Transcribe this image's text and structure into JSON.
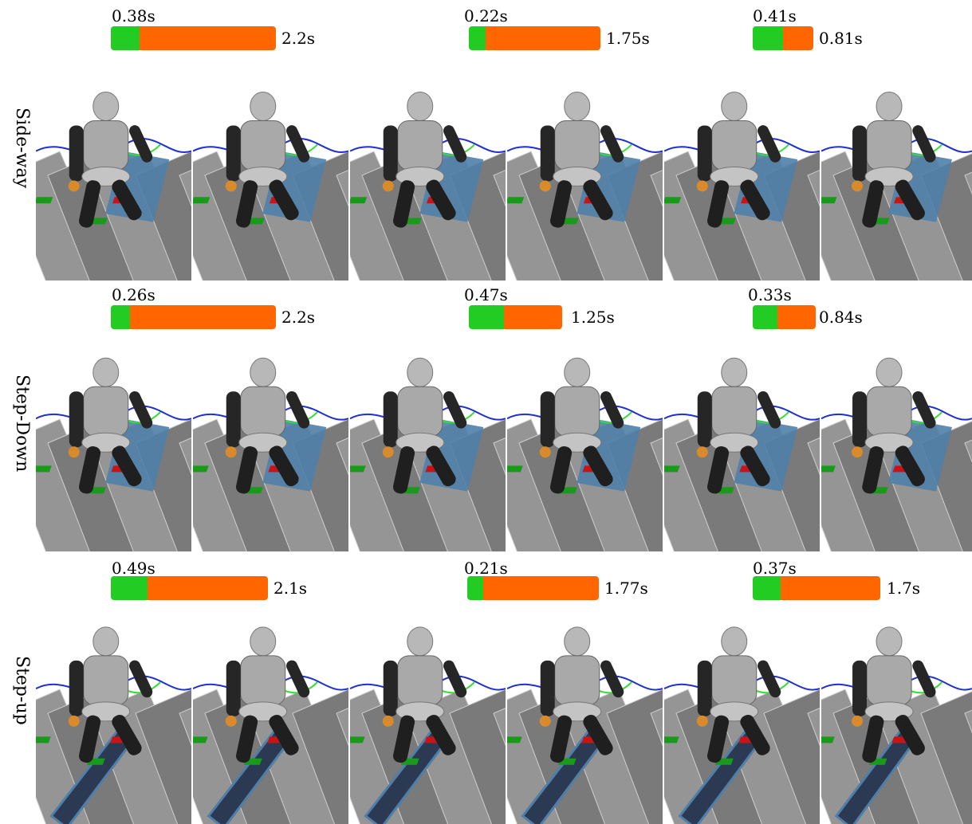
{
  "rows": [
    {
      "label": "Side-way",
      "timings": [
        {
          "planning": "0.38s",
          "total": "2.2s",
          "planning_fraction": 0.1727
        },
        {
          "planning": "0.22s",
          "total": "1.75s",
          "planning_fraction": 0.1257
        },
        {
          "planning": "0.41s",
          "total": "0.81s",
          "planning_fraction": 0.5062
        }
      ]
    },
    {
      "label": "Step-Down",
      "timings": [
        {
          "planning": "0.26s",
          "total": "2.2s",
          "planning_fraction": 0.1182
        },
        {
          "planning": "0.47s",
          "total": "1.25s",
          "planning_fraction": 0.376
        },
        {
          "planning": "0.33s",
          "total": "0.84s",
          "planning_fraction": 0.3929
        }
      ]
    },
    {
      "label": "Step-up",
      "timings": [
        {
          "planning": "0.49s",
          "total": "2.1s",
          "planning_fraction": 0.2333
        },
        {
          "planning": "0.21s",
          "total": "1.77s",
          "planning_fraction": 0.1186
        },
        {
          "planning": "0.37s",
          "total": "1.7s",
          "planning_fraction": 0.2176
        }
      ]
    }
  ],
  "colors": {
    "planning": "#22cc22",
    "execution": "#ff6600",
    "highlight_surface": "#4f7fa8",
    "ground": "#8a8a8a",
    "contact_red": "#c81414",
    "contact_green": "#1a9a1a",
    "trajectory_blue": "#1f2fd0",
    "trajectory_green": "#33dd33"
  }
}
